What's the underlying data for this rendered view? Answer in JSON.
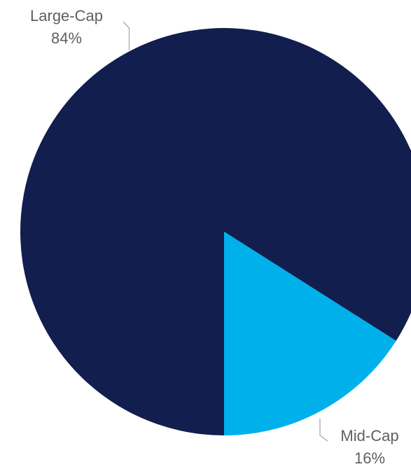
{
  "chart_data": {
    "type": "pie",
    "slices": [
      {
        "name": "Large-Cap",
        "value": 84,
        "label": "84%",
        "color": "#121e4e"
      },
      {
        "name": "Mid-Cap",
        "value": 16,
        "label": "16%",
        "color": "#00b0eb"
      }
    ],
    "start_angle_deg": 180,
    "direction": "clockwise",
    "legend": "none"
  }
}
